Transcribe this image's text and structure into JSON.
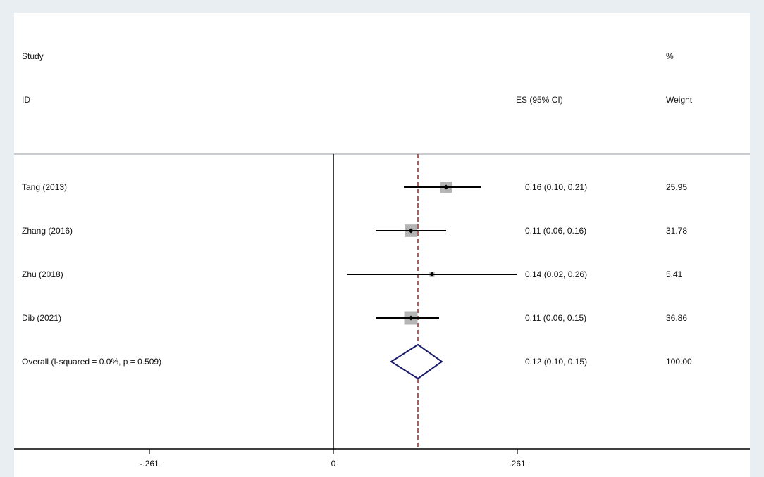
{
  "chart_data": {
    "type": "forest",
    "headers": {
      "study": "Study",
      "id": "ID",
      "es": "ES (95% CI)",
      "pct": "%",
      "weight": "Weight"
    },
    "studies": [
      {
        "id": "Tang (2013)",
        "es": 0.16,
        "lower": 0.1,
        "upper": 0.21,
        "es_text": "0.16 (0.10, 0.21)",
        "weight": 25.95,
        "weight_text": "25.95"
      },
      {
        "id": "Zhang (2016)",
        "es": 0.11,
        "lower": 0.06,
        "upper": 0.16,
        "es_text": "0.11 (0.06, 0.16)",
        "weight": 31.78,
        "weight_text": "31.78"
      },
      {
        "id": "Zhu (2018)",
        "es": 0.14,
        "lower": 0.02,
        "upper": 0.26,
        "es_text": "0.14 (0.02, 0.26)",
        "weight": 5.41,
        "weight_text": "5.41"
      },
      {
        "id": "Dib (2021)",
        "es": 0.11,
        "lower": 0.06,
        "upper": 0.15,
        "es_text": "0.11 (0.06, 0.15)",
        "weight": 36.86,
        "weight_text": "36.86"
      }
    ],
    "overall": {
      "label": "Overall  (I-squared = 0.0%, p = 0.509)",
      "es": 0.12,
      "lower": 0.1,
      "upper": 0.15,
      "es_text": "0.12 (0.10, 0.15)",
      "weight_text": "100.00"
    },
    "xticks": [
      {
        "value": -0.261,
        "label": "-.261"
      },
      {
        "value": 0,
        "label": "0"
      },
      {
        "value": 0.261,
        "label": ".261"
      }
    ],
    "xlim": [
      -0.261,
      0.261
    ],
    "null_line": 0,
    "colors": {
      "box": "#b4b4b4",
      "ci": "#000000",
      "overall_diamond": "#1c1c6c",
      "pooled_line": "#8b2a2a"
    }
  }
}
